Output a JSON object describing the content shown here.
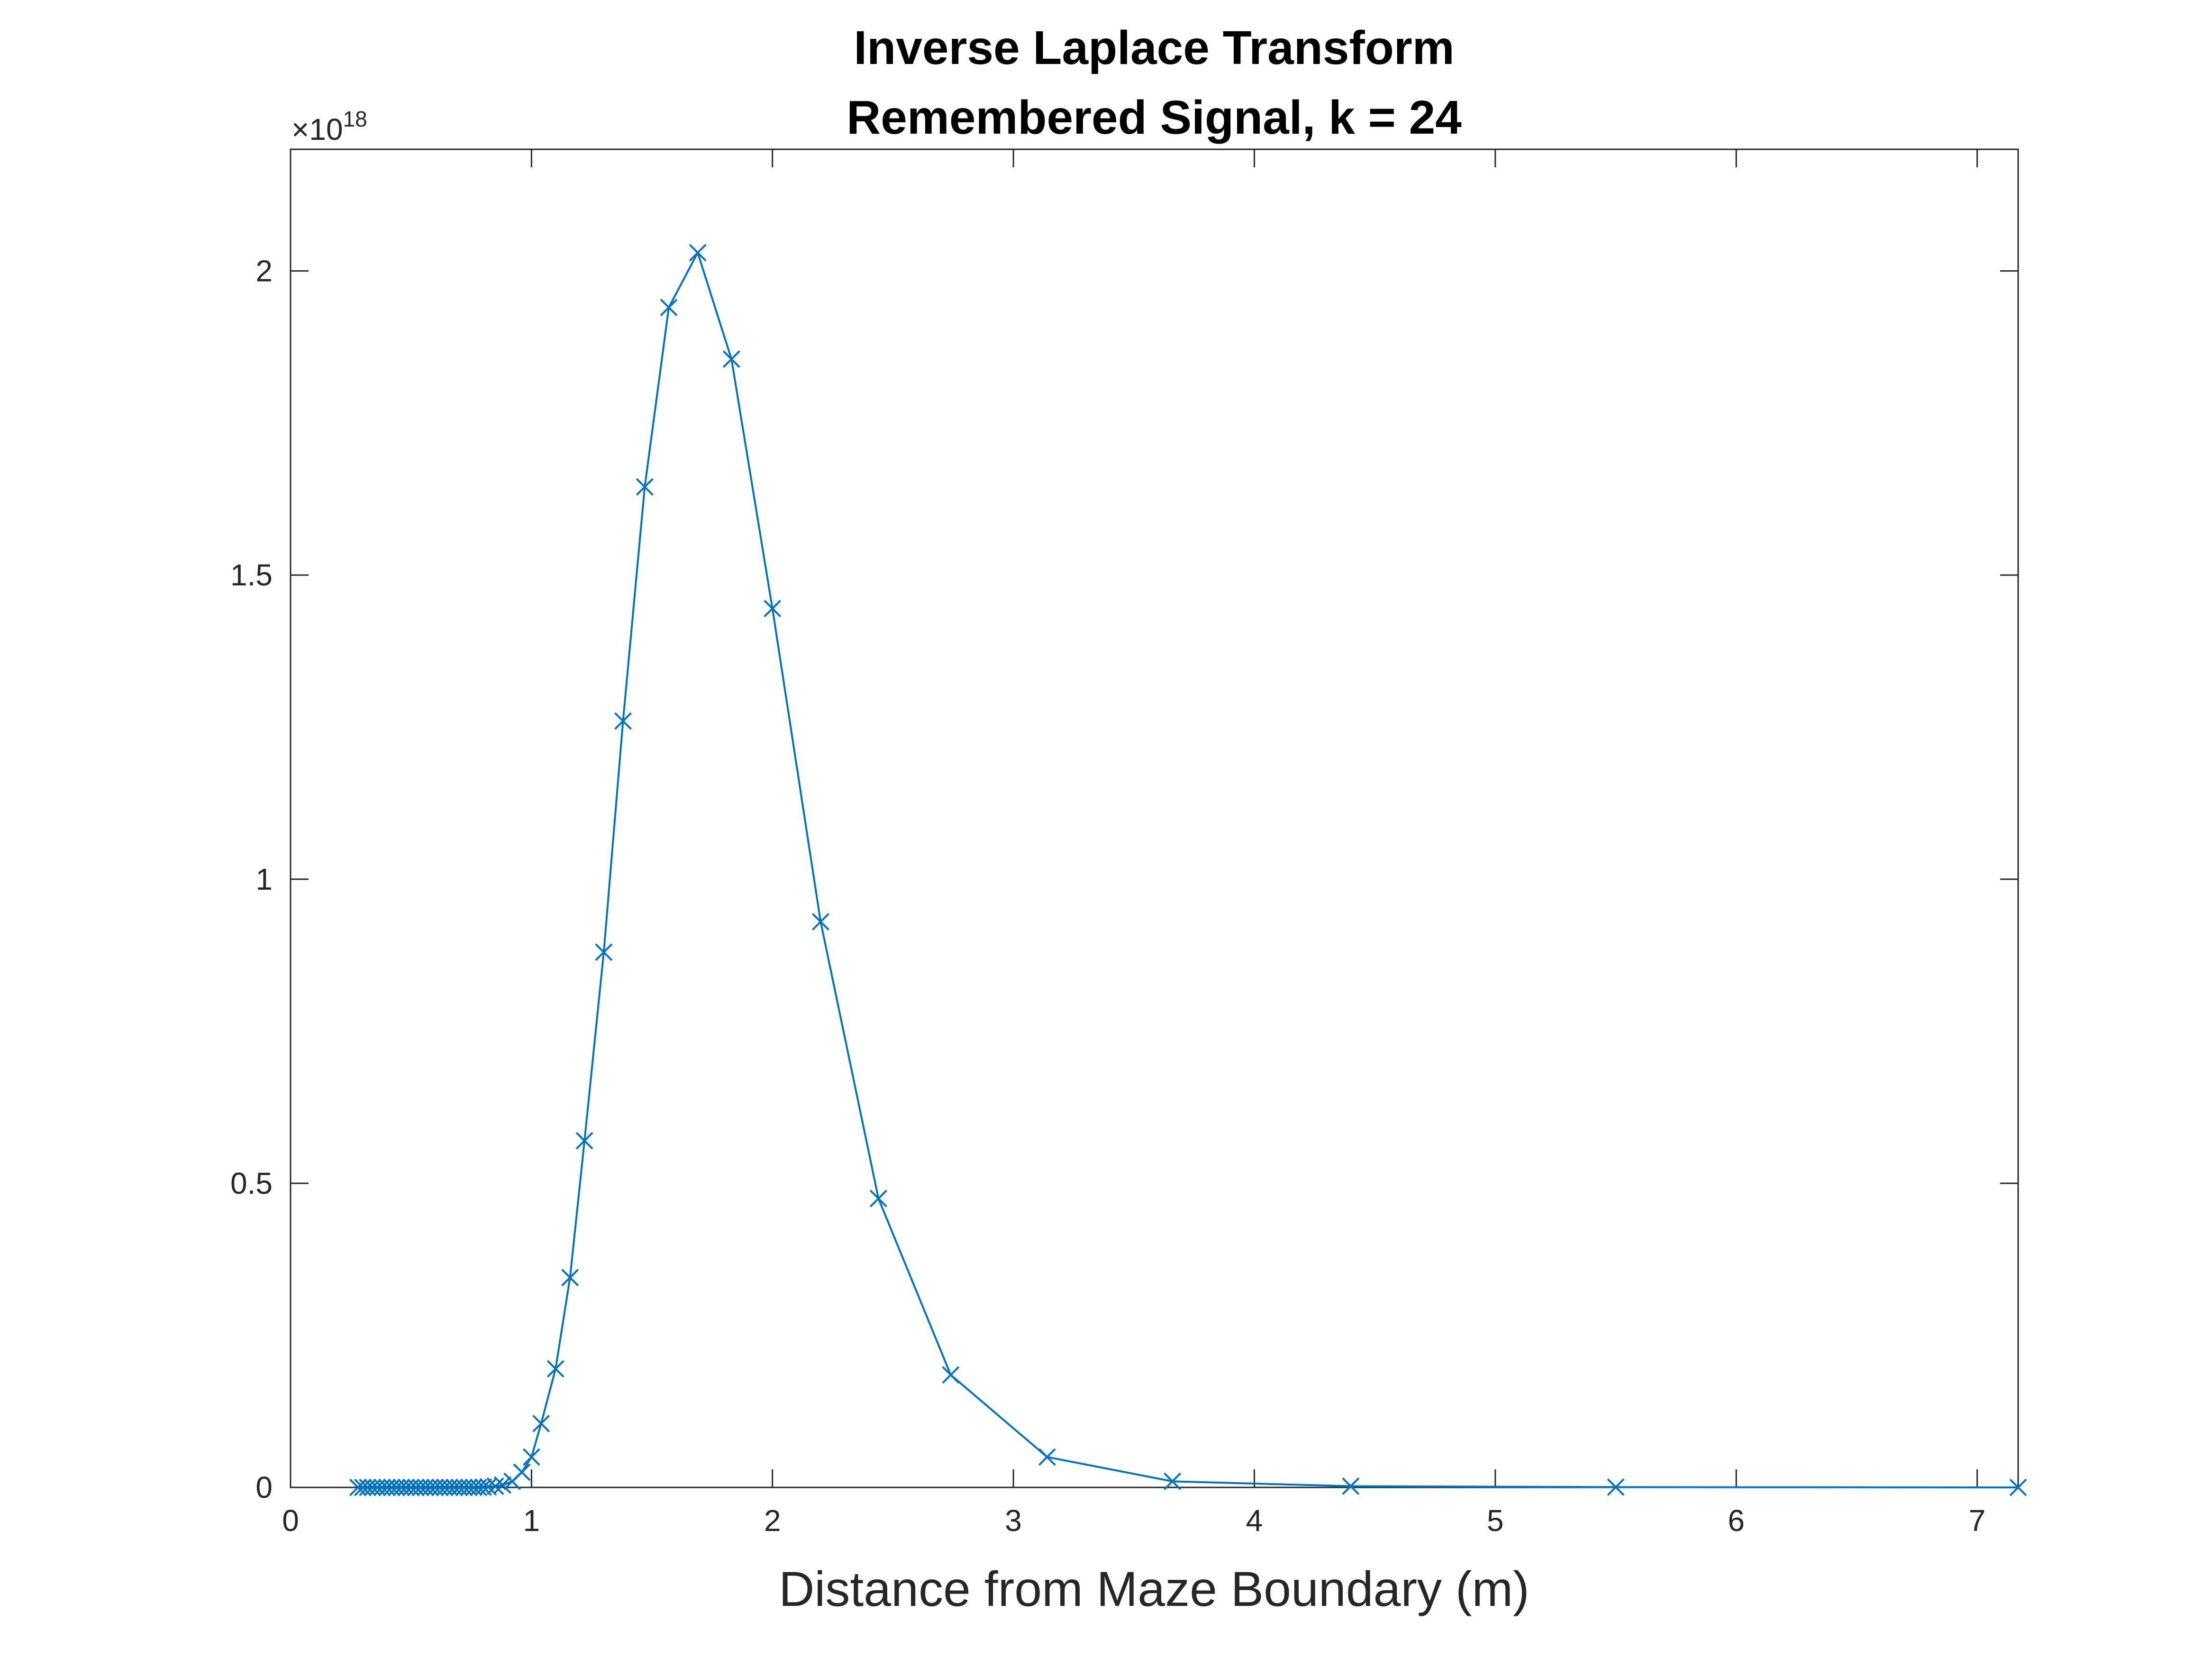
{
  "chart_data": {
    "type": "line",
    "title": [
      "Inverse Laplace Transform",
      "Remembered Signal, k = 24"
    ],
    "xlabel": "Distance from Maze Boundary (m)",
    "ylabel": "",
    "y_exponent": {
      "prefix": "×10",
      "power": "18"
    },
    "xlim": [
      0,
      7.17
    ],
    "ylim": [
      0,
      2.2
    ],
    "xticks": [
      "0",
      "1",
      "2",
      "3",
      "4",
      "5",
      "6",
      "7"
    ],
    "yticks": [
      "0",
      "0.5",
      "1",
      "1.5",
      "2"
    ],
    "marker": "x",
    "line_color": "#0072BD",
    "grid": false,
    "series": [
      {
        "x": [
          0.28,
          0.3,
          0.32,
          0.34,
          0.36,
          0.38,
          0.4,
          0.42,
          0.44,
          0.46,
          0.48,
          0.5,
          0.52,
          0.54,
          0.56,
          0.58,
          0.6,
          0.62,
          0.64,
          0.66,
          0.68,
          0.7,
          0.72,
          0.74,
          0.76,
          0.78,
          0.8,
          0.82,
          0.85,
          0.88,
          0.92,
          0.96,
          1.0,
          1.04,
          1.1,
          1.16,
          1.22,
          1.3,
          1.38,
          1.47,
          1.57,
          1.69,
          1.83,
          2.0,
          2.2,
          2.44,
          2.74,
          3.14,
          3.66,
          4.4,
          5.5,
          7.17
        ],
        "y": [
          0,
          0,
          0,
          0,
          0,
          0,
          0,
          0,
          0,
          0,
          0,
          0,
          0,
          0,
          0,
          0,
          0,
          0,
          0,
          0,
          0,
          0,
          0,
          0,
          0,
          0,
          0.0005,
          0.001,
          0.002,
          0.004,
          0.01,
          0.025,
          0.05,
          0.105,
          0.195,
          0.345,
          0.57,
          0.88,
          1.26,
          1.645,
          1.94,
          2.03,
          1.855,
          1.445,
          0.93,
          0.475,
          0.185,
          0.05,
          0.01,
          0.002,
          0.0005,
          0
        ]
      }
    ]
  }
}
